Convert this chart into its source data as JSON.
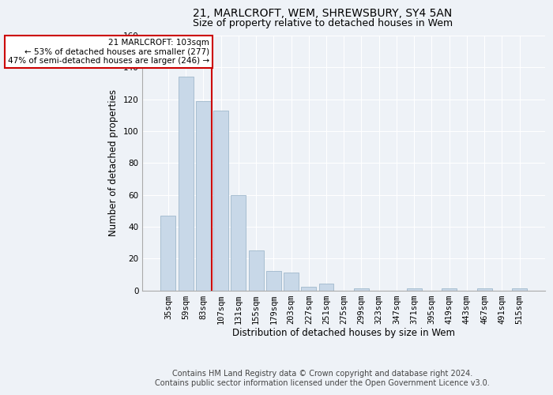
{
  "title": "21, MARLCROFT, WEM, SHREWSBURY, SY4 5AN",
  "subtitle": "Size of property relative to detached houses in Wem",
  "xlabel": "Distribution of detached houses by size in Wem",
  "ylabel": "Number of detached properties",
  "bar_labels": [
    "35sqm",
    "59sqm",
    "83sqm",
    "107sqm",
    "131sqm",
    "155sqm",
    "179sqm",
    "203sqm",
    "227sqm",
    "251sqm",
    "275sqm",
    "299sqm",
    "323sqm",
    "347sqm",
    "371sqm",
    "395sqm",
    "419sqm",
    "443sqm",
    "467sqm",
    "491sqm",
    "515sqm"
  ],
  "bar_values": [
    47,
    134,
    119,
    113,
    60,
    25,
    12,
    11,
    2,
    4,
    0,
    1,
    0,
    0,
    1,
    0,
    1,
    0,
    1,
    0,
    1
  ],
  "bar_color": "#c8d8e8",
  "bar_edgecolor": "#a0b8cc",
  "ylim": [
    0,
    160
  ],
  "yticks": [
    0,
    20,
    40,
    60,
    80,
    100,
    120,
    140,
    160
  ],
  "marker_label": "21 MARLCROFT: 103sqm",
  "annotation_line1": "← 53% of detached houses are smaller (277)",
  "annotation_line2": "47% of semi-detached houses are larger (246) →",
  "vline_color": "#cc0000",
  "annotation_box_edgecolor": "#cc0000",
  "footer_line1": "Contains HM Land Registry data © Crown copyright and database right 2024.",
  "footer_line2": "Contains public sector information licensed under the Open Government Licence v3.0.",
  "background_color": "#eef2f7",
  "grid_color": "#ffffff",
  "title_fontsize": 10,
  "subtitle_fontsize": 9,
  "axis_label_fontsize": 8.5,
  "tick_fontsize": 7.5,
  "annotation_fontsize": 7.5,
  "footer_fontsize": 7
}
